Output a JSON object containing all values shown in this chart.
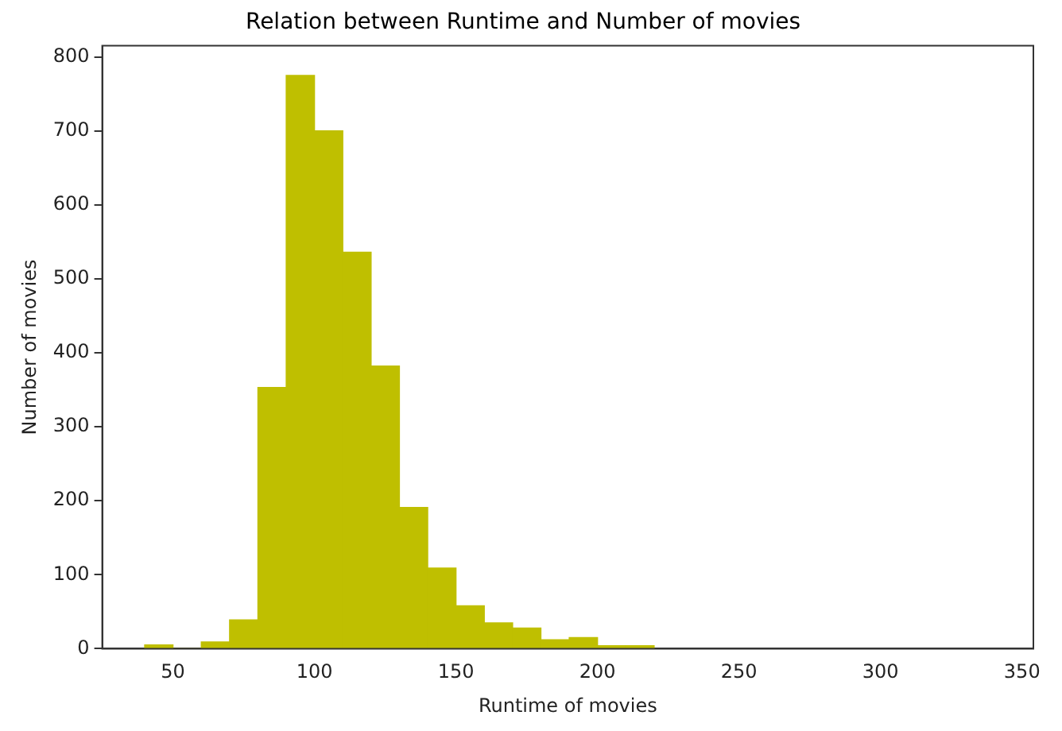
{
  "chart_data": {
    "type": "histogram",
    "title": "Relation between Runtime and Number of movies",
    "xlabel": "Runtime of movies",
    "ylabel": "Number of movies",
    "bins": [
      40,
      50,
      60,
      70,
      80,
      90,
      100,
      110,
      120,
      130,
      140,
      150,
      160,
      170,
      180,
      190,
      200,
      210,
      220
    ],
    "values": [
      5,
      0,
      9,
      39,
      353,
      775,
      700,
      536,
      382,
      191,
      109,
      58,
      35,
      28,
      12,
      15,
      4,
      4
    ],
    "color": "#bfbf00",
    "xlim": [
      25,
      354
    ],
    "xticks": [
      50,
      100,
      150,
      200,
      250,
      300,
      350
    ],
    "ylim": [
      0,
      815
    ],
    "yticks": [
      0,
      100,
      200,
      300,
      400,
      500,
      600,
      700,
      800
    ],
    "grid": false,
    "legend": false
  }
}
